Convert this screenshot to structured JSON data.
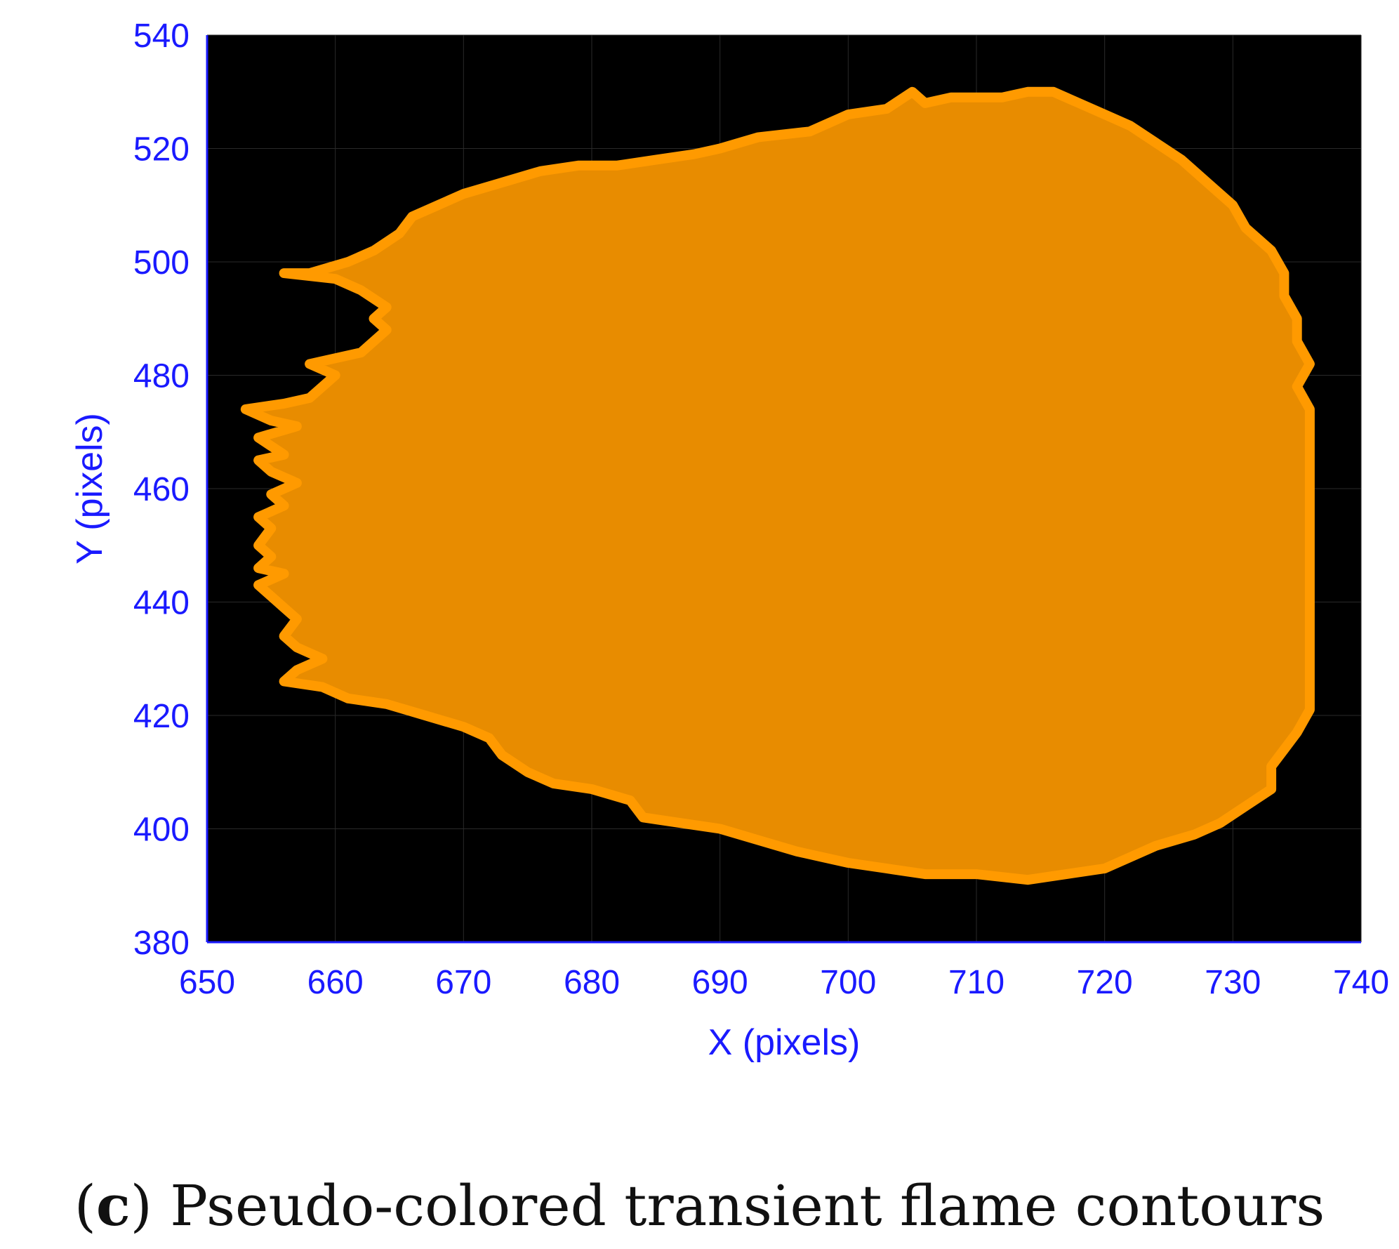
{
  "chart_data": {
    "type": "scatter",
    "xlabel": "X (pixels)",
    "ylabel": "Y (pixels)",
    "xlim": [
      650,
      740
    ],
    "ylim": [
      380,
      540
    ],
    "xticks": [
      650,
      660,
      670,
      680,
      690,
      700,
      710,
      720,
      730,
      740
    ],
    "yticks": [
      380,
      400,
      420,
      440,
      460,
      480,
      500,
      520,
      540
    ],
    "grid": true,
    "colors": {
      "background": "#000000",
      "fill": "#e88c00",
      "contour": "#ff9a00",
      "axis": "#1a1aff"
    },
    "contour": [
      [
        656,
        498
      ],
      [
        660,
        497
      ],
      [
        662,
        495
      ],
      [
        664,
        492
      ],
      [
        663,
        490
      ],
      [
        664,
        488
      ],
      [
        662,
        484
      ],
      [
        658,
        482
      ],
      [
        660,
        480
      ],
      [
        659,
        478
      ],
      [
        658,
        476
      ],
      [
        656,
        475
      ],
      [
        653,
        474
      ],
      [
        655,
        472
      ],
      [
        657,
        471
      ],
      [
        654,
        469
      ],
      [
        656,
        466
      ],
      [
        654,
        465
      ],
      [
        655,
        463
      ],
      [
        657,
        461
      ],
      [
        655,
        459
      ],
      [
        656,
        457
      ],
      [
        654,
        455
      ],
      [
        655,
        453
      ],
      [
        654,
        450
      ],
      [
        655,
        448
      ],
      [
        654,
        446
      ],
      [
        656,
        445
      ],
      [
        654,
        443
      ],
      [
        655,
        441
      ],
      [
        656,
        439
      ],
      [
        657,
        437
      ],
      [
        656,
        434
      ],
      [
        657,
        432
      ],
      [
        659,
        430
      ],
      [
        657,
        428
      ],
      [
        656,
        426
      ],
      [
        659,
        425
      ],
      [
        661,
        423
      ],
      [
        664,
        422
      ],
      [
        667,
        420
      ],
      [
        670,
        418
      ],
      [
        672,
        416
      ],
      [
        673,
        413
      ],
      [
        675,
        410
      ],
      [
        677,
        408
      ],
      [
        680,
        407
      ],
      [
        683,
        405
      ],
      [
        684,
        402
      ],
      [
        687,
        401
      ],
      [
        690,
        400
      ],
      [
        693,
        398
      ],
      [
        696,
        396
      ],
      [
        698,
        395
      ],
      [
        700,
        394
      ],
      [
        703,
        393
      ],
      [
        706,
        392
      ],
      [
        710,
        392
      ],
      [
        714,
        391
      ],
      [
        717,
        392
      ],
      [
        720,
        393
      ],
      [
        722,
        395
      ],
      [
        724,
        397
      ],
      [
        727,
        399
      ],
      [
        729,
        401
      ],
      [
        731,
        404
      ],
      [
        733,
        407
      ],
      [
        733,
        411
      ],
      [
        734,
        414
      ],
      [
        735,
        417
      ],
      [
        736,
        421
      ],
      [
        736,
        426
      ],
      [
        736,
        432
      ],
      [
        736,
        438
      ],
      [
        736,
        444
      ],
      [
        736,
        450
      ],
      [
        736,
        456
      ],
      [
        736,
        462
      ],
      [
        736,
        466
      ],
      [
        736,
        470
      ],
      [
        736,
        474
      ],
      [
        735,
        478
      ],
      [
        736,
        482
      ],
      [
        735,
        486
      ],
      [
        735,
        490
      ],
      [
        734,
        494
      ],
      [
        734,
        498
      ],
      [
        733,
        502
      ],
      [
        731,
        506
      ],
      [
        730,
        510
      ],
      [
        728,
        514
      ],
      [
        726,
        518
      ],
      [
        724,
        521
      ],
      [
        722,
        524
      ],
      [
        720,
        526
      ],
      [
        718,
        528
      ],
      [
        716,
        530
      ],
      [
        714,
        530
      ],
      [
        712,
        529
      ],
      [
        710,
        529
      ],
      [
        708,
        529
      ],
      [
        706,
        528
      ],
      [
        705,
        530
      ],
      [
        703,
        527
      ],
      [
        700,
        526
      ],
      [
        697,
        523
      ],
      [
        693,
        522
      ],
      [
        690,
        520
      ],
      [
        688,
        519
      ],
      [
        685,
        518
      ],
      [
        682,
        517
      ],
      [
        679,
        517
      ],
      [
        676,
        516
      ],
      [
        673,
        514
      ],
      [
        670,
        512
      ],
      [
        668,
        510
      ],
      [
        666,
        508
      ],
      [
        665,
        505
      ],
      [
        663,
        502
      ],
      [
        661,
        500
      ],
      [
        658,
        498
      ]
    ]
  },
  "caption": {
    "label": "c",
    "text": "Pseudo-colored transient flame contours"
  }
}
